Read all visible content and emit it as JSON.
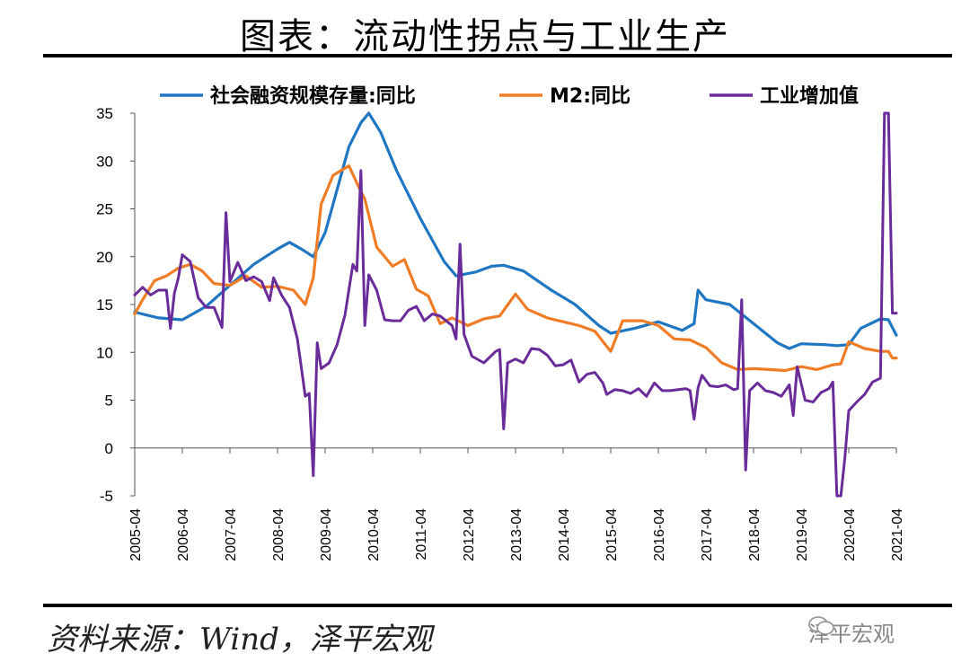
{
  "header": {
    "title": "图表：流动性拐点与工业生产"
  },
  "footer": {
    "source": "资料来源：Wind，泽平宏观",
    "watermark": "泽平宏观"
  },
  "chart_data": {
    "type": "line",
    "title": "图表：流动性拐点与工业生产",
    "xlabel": "",
    "ylabel": "",
    "ylim": [
      -5,
      35
    ],
    "yticks": [
      -5,
      0,
      5,
      10,
      15,
      20,
      25,
      30,
      35
    ],
    "xlim": [
      "2005-04",
      "2021-04"
    ],
    "xticks": [
      "2005-04",
      "2006-04",
      "2007-04",
      "2008-04",
      "2009-04",
      "2010-04",
      "2011-04",
      "2012-04",
      "2013-04",
      "2014-04",
      "2015-04",
      "2016-04",
      "2017-04",
      "2018-04",
      "2019-04",
      "2020-04",
      "2021-04"
    ],
    "legend_position": "top",
    "grid": false,
    "series": [
      {
        "name": "社会融资规模存量:同比",
        "color": "#1f77c4",
        "points": [
          [
            "2005-04",
            14.2
          ],
          [
            "2005-10",
            13.6
          ],
          [
            "2006-04",
            13.4
          ],
          [
            "2006-10",
            14.8
          ],
          [
            "2007-04",
            17.0
          ],
          [
            "2007-10",
            19.2
          ],
          [
            "2008-04",
            20.8
          ],
          [
            "2008-07",
            21.5
          ],
          [
            "2008-10",
            20.8
          ],
          [
            "2009-01",
            20.0
          ],
          [
            "2009-04",
            22.5
          ],
          [
            "2009-07",
            27.0
          ],
          [
            "2009-10",
            31.5
          ],
          [
            "2010-01",
            34.0
          ],
          [
            "2010-03",
            35.0
          ],
          [
            "2010-06",
            33.0
          ],
          [
            "2010-10",
            29.0
          ],
          [
            "2011-04",
            24.0
          ],
          [
            "2011-10",
            19.5
          ],
          [
            "2012-01",
            18.0
          ],
          [
            "2012-06",
            18.4
          ],
          [
            "2012-10",
            19.0
          ],
          [
            "2013-01",
            19.1
          ],
          [
            "2013-06",
            18.5
          ],
          [
            "2014-01",
            16.5
          ],
          [
            "2014-07",
            15.0
          ],
          [
            "2015-01",
            12.8
          ],
          [
            "2015-04",
            12.0
          ],
          [
            "2015-10",
            12.5
          ],
          [
            "2016-04",
            13.2
          ],
          [
            "2016-10",
            12.3
          ],
          [
            "2017-01",
            13.0
          ],
          [
            "2017-02",
            16.5
          ],
          [
            "2017-04",
            15.5
          ],
          [
            "2017-10",
            15.0
          ],
          [
            "2018-04",
            13.0
          ],
          [
            "2018-10",
            11.0
          ],
          [
            "2019-01",
            10.4
          ],
          [
            "2019-04",
            10.9
          ],
          [
            "2019-10",
            10.8
          ],
          [
            "2020-01",
            10.7
          ],
          [
            "2020-04",
            10.8
          ],
          [
            "2020-07",
            12.5
          ],
          [
            "2020-12",
            13.5
          ],
          [
            "2021-02",
            13.4
          ],
          [
            "2021-04",
            11.8
          ]
        ]
      },
      {
        "name": "M2:同比",
        "color": "#f07d26",
        "points": [
          [
            "2005-04",
            14.0
          ],
          [
            "2005-06",
            15.5
          ],
          [
            "2005-09",
            17.5
          ],
          [
            "2005-12",
            18.0
          ],
          [
            "2006-03",
            18.8
          ],
          [
            "2006-06",
            19.2
          ],
          [
            "2006-09",
            18.5
          ],
          [
            "2006-12",
            17.2
          ],
          [
            "2007-04",
            17.0
          ],
          [
            "2007-08",
            18.0
          ],
          [
            "2007-12",
            16.8
          ],
          [
            "2008-04",
            16.9
          ],
          [
            "2008-08",
            16.5
          ],
          [
            "2008-11",
            15.0
          ],
          [
            "2009-01",
            17.8
          ],
          [
            "2009-03",
            25.5
          ],
          [
            "2009-06",
            28.5
          ],
          [
            "2009-10",
            29.5
          ],
          [
            "2009-12",
            27.7
          ],
          [
            "2010-02",
            26.0
          ],
          [
            "2010-05",
            21.0
          ],
          [
            "2010-09",
            19.0
          ],
          [
            "2010-12",
            19.7
          ],
          [
            "2011-03",
            16.6
          ],
          [
            "2011-06",
            15.9
          ],
          [
            "2011-09",
            13.0
          ],
          [
            "2011-12",
            13.6
          ],
          [
            "2012-04",
            12.8
          ],
          [
            "2012-08",
            13.5
          ],
          [
            "2012-12",
            13.8
          ],
          [
            "2013-04",
            16.1
          ],
          [
            "2013-07",
            14.5
          ],
          [
            "2013-12",
            13.6
          ],
          [
            "2014-04",
            13.2
          ],
          [
            "2014-08",
            12.8
          ],
          [
            "2014-12",
            12.2
          ],
          [
            "2015-04",
            10.1
          ],
          [
            "2015-07",
            13.3
          ],
          [
            "2015-12",
            13.3
          ],
          [
            "2016-04",
            12.8
          ],
          [
            "2016-08",
            11.4
          ],
          [
            "2016-12",
            11.3
          ],
          [
            "2017-04",
            10.5
          ],
          [
            "2017-08",
            8.9
          ],
          [
            "2017-12",
            8.2
          ],
          [
            "2018-04",
            8.3
          ],
          [
            "2018-08",
            8.2
          ],
          [
            "2018-12",
            8.1
          ],
          [
            "2019-04",
            8.5
          ],
          [
            "2019-08",
            8.2
          ],
          [
            "2019-12",
            8.7
          ],
          [
            "2020-02",
            8.8
          ],
          [
            "2020-04",
            11.1
          ],
          [
            "2020-08",
            10.4
          ],
          [
            "2020-12",
            10.1
          ],
          [
            "2021-02",
            10.1
          ],
          [
            "2021-03",
            9.4
          ],
          [
            "2021-04",
            9.4
          ]
        ]
      },
      {
        "name": "工业增加值",
        "color": "#6a2c9a",
        "points": [
          [
            "2005-04",
            16.0
          ],
          [
            "2005-06",
            16.8
          ],
          [
            "2005-08",
            16.0
          ],
          [
            "2005-10",
            16.5
          ],
          [
            "2005-12",
            16.5
          ],
          [
            "2006-01",
            12.5
          ],
          [
            "2006-02",
            16.2
          ],
          [
            "2006-03",
            17.8
          ],
          [
            "2006-04",
            20.2
          ],
          [
            "2006-06",
            19.5
          ],
          [
            "2006-08",
            15.7
          ],
          [
            "2006-10",
            14.7
          ],
          [
            "2006-12",
            14.7
          ],
          [
            "2007-02",
            12.6
          ],
          [
            "2007-03",
            24.6
          ],
          [
            "2007-04",
            17.4
          ],
          [
            "2007-06",
            19.4
          ],
          [
            "2007-08",
            17.5
          ],
          [
            "2007-10",
            17.9
          ],
          [
            "2007-12",
            17.4
          ],
          [
            "2008-02",
            15.4
          ],
          [
            "2008-03",
            17.8
          ],
          [
            "2008-05",
            16.0
          ],
          [
            "2008-07",
            14.7
          ],
          [
            "2008-09",
            11.4
          ],
          [
            "2008-11",
            5.4
          ],
          [
            "2008-12",
            5.7
          ],
          [
            "2009-01",
            -2.9
          ],
          [
            "2009-02",
            11.0
          ],
          [
            "2009-03",
            8.3
          ],
          [
            "2009-05",
            8.9
          ],
          [
            "2009-07",
            10.8
          ],
          [
            "2009-09",
            13.9
          ],
          [
            "2009-11",
            19.2
          ],
          [
            "2009-12",
            18.5
          ],
          [
            "2010-01",
            29.0
          ],
          [
            "2010-02",
            12.8
          ],
          [
            "2010-03",
            18.1
          ],
          [
            "2010-05",
            16.5
          ],
          [
            "2010-07",
            13.4
          ],
          [
            "2010-09",
            13.3
          ],
          [
            "2010-11",
            13.3
          ],
          [
            "2011-01",
            14.4
          ],
          [
            "2011-03",
            14.8
          ],
          [
            "2011-05",
            13.3
          ],
          [
            "2011-07",
            14.0
          ],
          [
            "2011-09",
            13.8
          ],
          [
            "2011-12",
            12.8
          ],
          [
            "2012-01",
            11.4
          ],
          [
            "2012-02",
            21.3
          ],
          [
            "2012-03",
            11.9
          ],
          [
            "2012-05",
            9.6
          ],
          [
            "2012-08",
            8.9
          ],
          [
            "2012-11",
            10.1
          ],
          [
            "2012-12",
            10.3
          ],
          [
            "2013-01",
            2.0
          ],
          [
            "2013-02",
            8.9
          ],
          [
            "2013-04",
            9.3
          ],
          [
            "2013-06",
            8.9
          ],
          [
            "2013-08",
            10.4
          ],
          [
            "2013-10",
            10.3
          ],
          [
            "2013-12",
            9.7
          ],
          [
            "2014-02",
            8.6
          ],
          [
            "2014-04",
            8.7
          ],
          [
            "2014-06",
            9.2
          ],
          [
            "2014-08",
            6.9
          ],
          [
            "2014-10",
            7.7
          ],
          [
            "2014-12",
            7.9
          ],
          [
            "2015-02",
            6.8
          ],
          [
            "2015-03",
            5.6
          ],
          [
            "2015-05",
            6.1
          ],
          [
            "2015-07",
            6.0
          ],
          [
            "2015-09",
            5.7
          ],
          [
            "2015-11",
            6.2
          ],
          [
            "2016-01",
            5.4
          ],
          [
            "2016-03",
            6.8
          ],
          [
            "2016-05",
            6.0
          ],
          [
            "2016-07",
            6.0
          ],
          [
            "2016-09",
            6.1
          ],
          [
            "2016-11",
            6.2
          ],
          [
            "2016-12",
            6.0
          ],
          [
            "2017-01",
            3.0
          ],
          [
            "2017-02",
            6.3
          ],
          [
            "2017-03",
            7.6
          ],
          [
            "2017-05",
            6.5
          ],
          [
            "2017-07",
            6.4
          ],
          [
            "2017-09",
            6.6
          ],
          [
            "2017-11",
            6.1
          ],
          [
            "2017-12",
            6.2
          ],
          [
            "2018-01",
            15.5
          ],
          [
            "2018-02",
            -2.3
          ],
          [
            "2018-03",
            6.0
          ],
          [
            "2018-05",
            6.8
          ],
          [
            "2018-07",
            6.0
          ],
          [
            "2018-09",
            5.8
          ],
          [
            "2018-11",
            5.4
          ],
          [
            "2019-01",
            6.6
          ],
          [
            "2019-02",
            3.4
          ],
          [
            "2019-03",
            8.5
          ],
          [
            "2019-05",
            5.0
          ],
          [
            "2019-07",
            4.8
          ],
          [
            "2019-09",
            5.8
          ],
          [
            "2019-11",
            6.2
          ],
          [
            "2019-12",
            6.9
          ],
          [
            "2020-01",
            -5.0
          ],
          [
            "2020-02",
            -5.0
          ],
          [
            "2020-03",
            -1.1
          ],
          [
            "2020-04",
            3.9
          ],
          [
            "2020-06",
            4.8
          ],
          [
            "2020-08",
            5.6
          ],
          [
            "2020-10",
            6.9
          ],
          [
            "2020-12",
            7.3
          ],
          [
            "2021-01",
            35.0
          ],
          [
            "2021-02",
            35.0
          ],
          [
            "2021-03",
            14.1
          ],
          [
            "2021-04",
            14.1
          ]
        ]
      }
    ]
  }
}
